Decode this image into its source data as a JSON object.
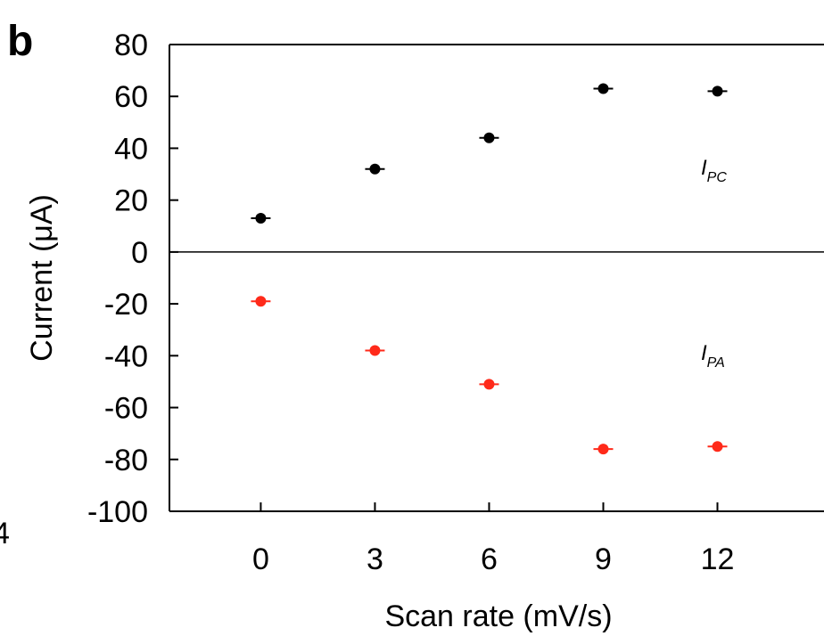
{
  "chart_data": {
    "type": "scatter",
    "panel_label": "b",
    "xlabel": "Scan rate (mV/s)",
    "ylabel": "Current (μA)",
    "xlim": [
      -2.4,
      14.8
    ],
    "ylim": [
      -100,
      80
    ],
    "x_ticks": [
      "0",
      "3",
      "6",
      "9",
      "12"
    ],
    "y_ticks": [
      "80",
      "60",
      "40",
      "20",
      "0",
      "-20",
      "-40",
      "-60",
      "-80",
      "-100"
    ],
    "zero_line": true,
    "grid": false,
    "margin_text": "4",
    "series": [
      {
        "label_main": "I",
        "label_sub": "PC",
        "color": "#000000",
        "x": [
          0,
          3,
          6,
          9,
          12
        ],
        "y": [
          13,
          32,
          44,
          63,
          62
        ]
      },
      {
        "label_main": "I",
        "label_sub": "PA",
        "color": "#ff2a1a",
        "x": [
          0,
          3,
          6,
          9,
          12
        ],
        "y": [
          -19,
          -38,
          -51,
          -76,
          -75
        ]
      }
    ]
  }
}
